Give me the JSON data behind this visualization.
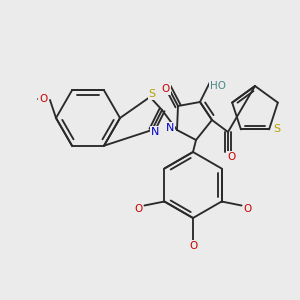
{
  "bg_color": "#ebebeb",
  "bond_color": "#2a2a2a",
  "bond_lw": 1.35,
  "figsize": [
    3.0,
    3.0
  ],
  "dpi": 100,
  "colors": {
    "S": "#b8a000",
    "N": "#0000cc",
    "O": "#cc0000",
    "HO": "#4a8888",
    "C": "#2a2a2a"
  }
}
